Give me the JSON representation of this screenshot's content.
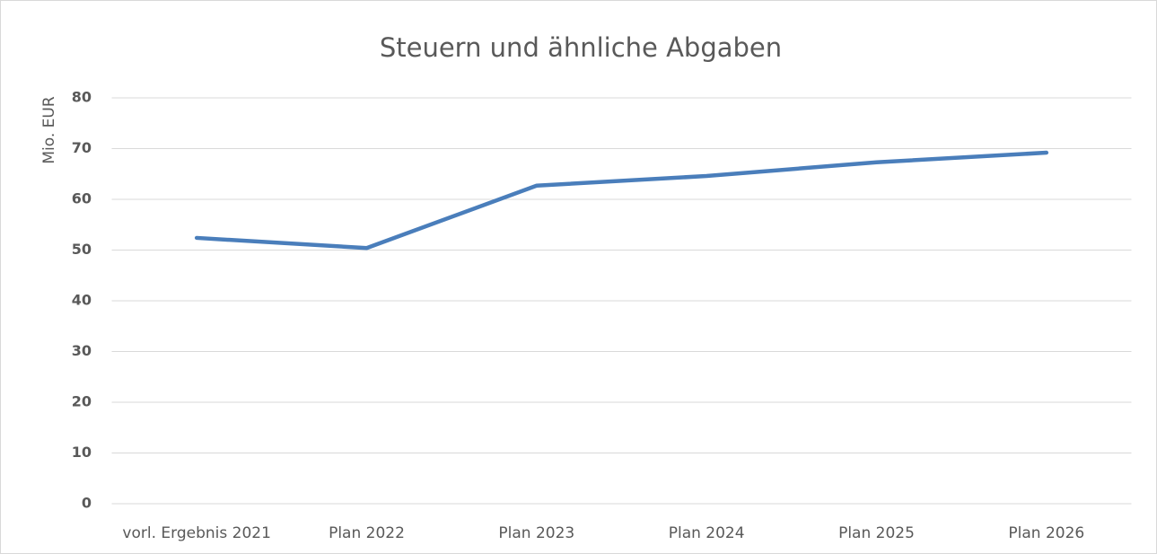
{
  "chart_data": {
    "type": "line",
    "title": "Steuern und ähnliche Abgaben",
    "y_label": "Mio. EUR",
    "categories": [
      "vorl. Ergebnis 2021",
      "Plan 2022",
      "Plan 2023",
      "Plan 2024",
      "Plan 2025",
      "Plan 2026"
    ],
    "series": [
      {
        "name": "Steuern und ähnliche Abgaben",
        "color": "#4a7ebb",
        "values": [
          52.4,
          50.4,
          62.7,
          64.6,
          67.3,
          69.2
        ]
      }
    ],
    "ylim": [
      0,
      80
    ],
    "yticks": [
      0,
      10,
      20,
      30,
      40,
      50,
      60,
      70,
      80
    ],
    "grid": true
  }
}
